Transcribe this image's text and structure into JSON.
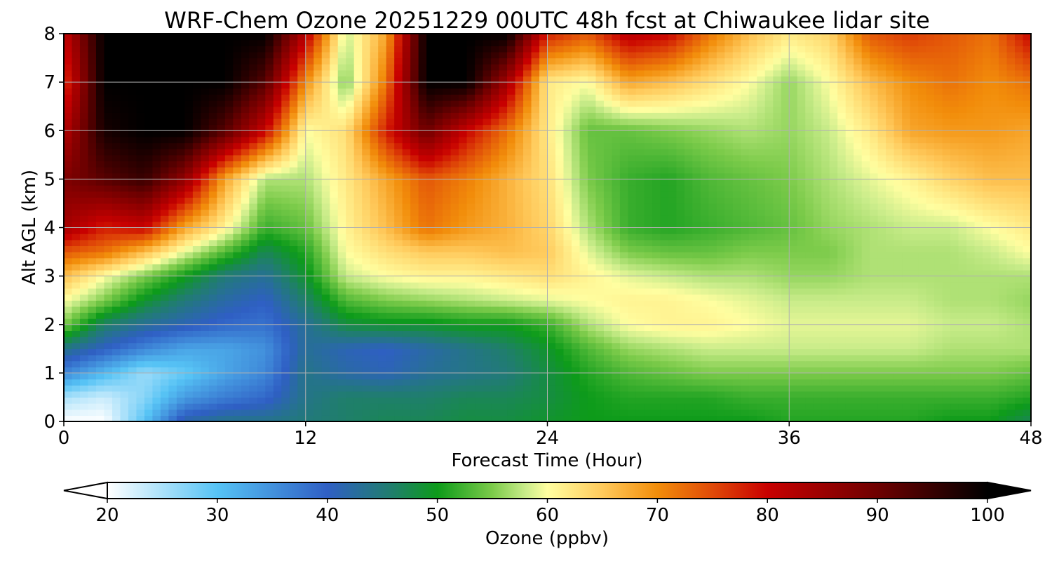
{
  "chart_data": {
    "type": "heatmap",
    "title": "WRF-Chem Ozone  20251229 00UTC 48h fcst at Chiwaukee lidar site",
    "xlabel": "Forecast Time (Hour)",
    "ylabel": "Alt AGL (km)",
    "xlim": [
      0,
      48
    ],
    "ylim": [
      0,
      8
    ],
    "xticks": [
      0,
      12,
      24,
      36,
      48
    ],
    "yticks": [
      0,
      1,
      2,
      3,
      4,
      5,
      6,
      7,
      8
    ],
    "grid": true,
    "colorbar": {
      "label": "Ozone  (ppbv)",
      "min": 20,
      "max": 100,
      "ticks": [
        20,
        30,
        40,
        50,
        60,
        70,
        80,
        90,
        100
      ],
      "extend": "both",
      "stops": [
        {
          "value": 20,
          "color": "#ffffff"
        },
        {
          "value": 30,
          "color": "#56c3f5"
        },
        {
          "value": 40,
          "color": "#2f5fc4"
        },
        {
          "value": 46,
          "color": "#1f7f6a"
        },
        {
          "value": 50,
          "color": "#0d9b1a"
        },
        {
          "value": 55,
          "color": "#7ccb4a"
        },
        {
          "value": 58,
          "color": "#c9ec8a"
        },
        {
          "value": 60,
          "color": "#fffea0"
        },
        {
          "value": 65,
          "color": "#ffca5c"
        },
        {
          "value": 70,
          "color": "#f28d0a"
        },
        {
          "value": 75,
          "color": "#e04a08"
        },
        {
          "value": 80,
          "color": "#c80000"
        },
        {
          "value": 90,
          "color": "#6e0000"
        },
        {
          "value": 100,
          "color": "#000000"
        }
      ]
    },
    "altitudes_km": [
      0,
      0.5,
      1,
      1.5,
      2,
      2.5,
      3,
      3.5,
      4,
      5,
      6,
      7,
      8
    ],
    "hours": [
      0,
      2,
      4,
      6,
      8,
      10,
      12,
      14,
      16,
      18,
      20,
      22,
      24,
      26,
      28,
      30,
      32,
      34,
      36,
      38,
      40,
      42,
      44,
      46,
      48
    ],
    "ozone_ppbv": [
      [
        20,
        20,
        30,
        42,
        44,
        44,
        45,
        46,
        47,
        47,
        48,
        48,
        49,
        50,
        50,
        50,
        50,
        50,
        51,
        51,
        51,
        51,
        50,
        50,
        47
      ],
      [
        25,
        23,
        27,
        34,
        37,
        39,
        44,
        46,
        46,
        46,
        47,
        47,
        48,
        50,
        51,
        51,
        51,
        52,
        52,
        52,
        52,
        52,
        52,
        52,
        51
      ],
      [
        36,
        31,
        26,
        29,
        33,
        36,
        44,
        42,
        41,
        43,
        44,
        45,
        48,
        51,
        53,
        54,
        55,
        55,
        55,
        55,
        55,
        55,
        55,
        55,
        54
      ],
      [
        44,
        40,
        36,
        33,
        33,
        35,
        43,
        41,
        40,
        42,
        44,
        46,
        49,
        53,
        56,
        57,
        58,
        58,
        58,
        58,
        58,
        58,
        57,
        57,
        57
      ],
      [
        55,
        46,
        43,
        41,
        39,
        38,
        43,
        48,
        49,
        49,
        50,
        50,
        52,
        57,
        60,
        61,
        61,
        60,
        59,
        59,
        59,
        59,
        58,
        58,
        57
      ],
      [
        60,
        55,
        49,
        45,
        42,
        40,
        46,
        53,
        55,
        56,
        57,
        58,
        59,
        60,
        61,
        61,
        60,
        59,
        58,
        58,
        58,
        58,
        57,
        57,
        56
      ],
      [
        66,
        60,
        55,
        50,
        45,
        43,
        49,
        58,
        60,
        61,
        61,
        62,
        63,
        61,
        59,
        58,
        57,
        57,
        56,
        56,
        57,
        57,
        57,
        57,
        57
      ],
      [
        74,
        72,
        66,
        59,
        53,
        47,
        51,
        60,
        63,
        65,
        65,
        66,
        65,
        59,
        55,
        54,
        54,
        55,
        55,
        55,
        57,
        57,
        57,
        58,
        60
      ],
      [
        84,
        78,
        80,
        68,
        61,
        52,
        54,
        61,
        66,
        72,
        69,
        67,
        64,
        57,
        52,
        51,
        52,
        53,
        54,
        56,
        57,
        58,
        58,
        60,
        62
      ],
      [
        88,
        92,
        95,
        86,
        68,
        57,
        57,
        62,
        68,
        74,
        71,
        67,
        63,
        55,
        52,
        51,
        53,
        54,
        55,
        57,
        59,
        61,
        64,
        66,
        66
      ],
      [
        82,
        98,
        100,
        100,
        92,
        80,
        60,
        63,
        78,
        90,
        80,
        72,
        62,
        54,
        54,
        55,
        56,
        57,
        56,
        58,
        62,
        68,
        69,
        69,
        68
      ],
      [
        76,
        100,
        100,
        100,
        100,
        92,
        70,
        55,
        72,
        100,
        100,
        84,
        62,
        60,
        68,
        66,
        63,
        60,
        56,
        60,
        66,
        70,
        72,
        70,
        72
      ],
      [
        80,
        100,
        100,
        100,
        100,
        100,
        82,
        58,
        68,
        100,
        100,
        100,
        78,
        74,
        82,
        80,
        72,
        66,
        62,
        64,
        74,
        76,
        74,
        72,
        80
      ]
    ]
  }
}
